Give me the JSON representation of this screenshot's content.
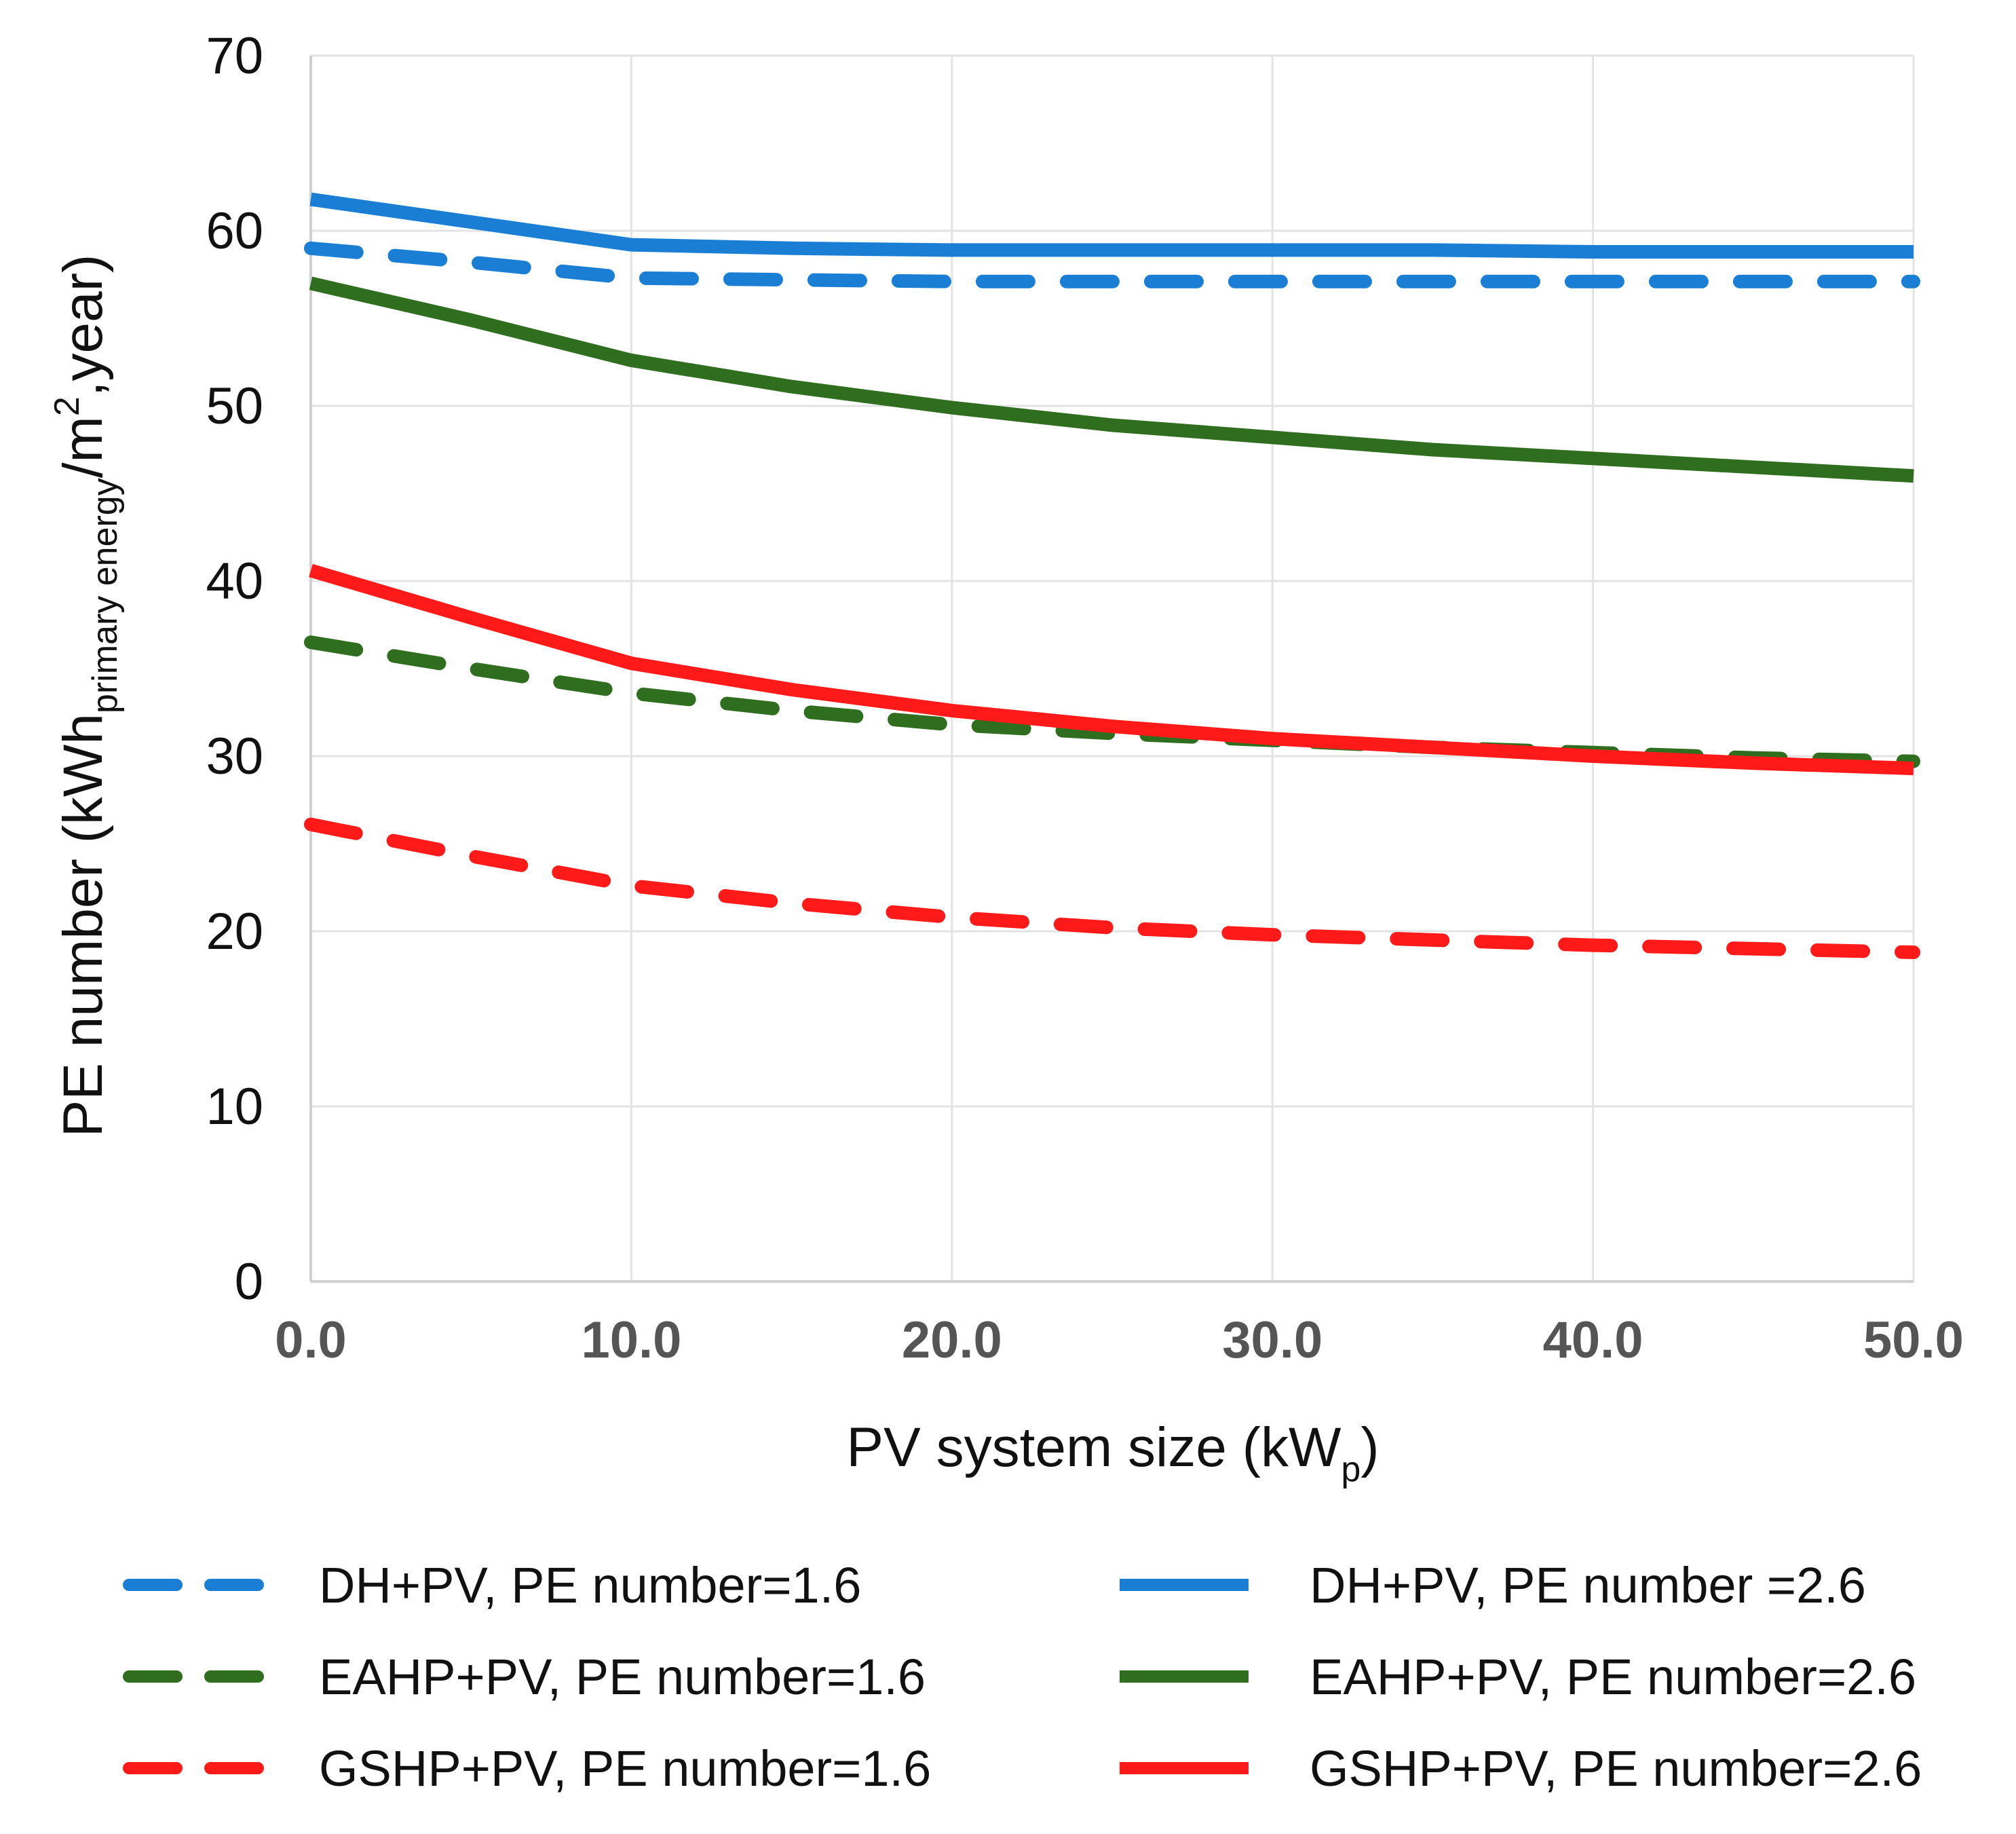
{
  "chart_data": {
    "type": "line",
    "title": "",
    "xlabel": {
      "main": "PV system size (kW",
      "sub": "p",
      "end": ")"
    },
    "ylabel": {
      "main": "PE number (kWh",
      "sub": "primary energy",
      "mid": "/m",
      "sup": "2",
      "end": ",year)"
    },
    "xlim": [
      0,
      50
    ],
    "ylim": [
      0,
      70
    ],
    "x_ticks": [
      "0.0",
      "10.0",
      "20.0",
      "30.0",
      "40.0",
      "50.0"
    ],
    "y_ticks": [
      "0",
      "10",
      "20",
      "30",
      "40",
      "50",
      "60",
      "70"
    ],
    "grid": true,
    "legend_position": "bottom",
    "x": [
      0,
      5,
      10,
      15,
      20,
      25,
      30,
      35,
      40,
      45,
      50
    ],
    "series": [
      {
        "name": "DH+PV, PE number=1.6",
        "color": "#1a7fd4",
        "dash": "dashed",
        "values": [
          59.0,
          58.2,
          57.3,
          57.2,
          57.1,
          57.1,
          57.1,
          57.1,
          57.1,
          57.1,
          57.1
        ]
      },
      {
        "name": "DH+PV, PE number =2.6",
        "color": "#1a7fd4",
        "dash": "solid",
        "values": [
          61.8,
          60.5,
          59.2,
          59.0,
          58.9,
          58.9,
          58.9,
          58.9,
          58.8,
          58.8,
          58.8
        ]
      },
      {
        "name": "EAHP+PV, PE number=1.6",
        "color": "#2e6e1e",
        "dash": "dashed",
        "values": [
          36.5,
          35.0,
          33.6,
          32.6,
          31.8,
          31.3,
          30.9,
          30.5,
          30.2,
          29.9,
          29.7
        ]
      },
      {
        "name": "EAHP+PV, PE number=2.6",
        "color": "#2e6e1e",
        "dash": "solid",
        "values": [
          57.0,
          54.9,
          52.6,
          51.1,
          49.9,
          48.9,
          48.2,
          47.5,
          47.0,
          46.5,
          46.0
        ]
      },
      {
        "name": "GSHP+PV, PE number=1.6",
        "color": "#ff1a1a",
        "dash": "dashed",
        "values": [
          26.1,
          24.3,
          22.6,
          21.6,
          20.8,
          20.2,
          19.8,
          19.5,
          19.2,
          19.0,
          18.8
        ]
      },
      {
        "name": "GSHP+PV, PE number=2.6",
        "color": "#ff1a1a",
        "dash": "solid",
        "values": [
          40.6,
          37.9,
          35.3,
          33.8,
          32.6,
          31.7,
          31.0,
          30.5,
          30.0,
          29.6,
          29.3
        ]
      }
    ]
  }
}
